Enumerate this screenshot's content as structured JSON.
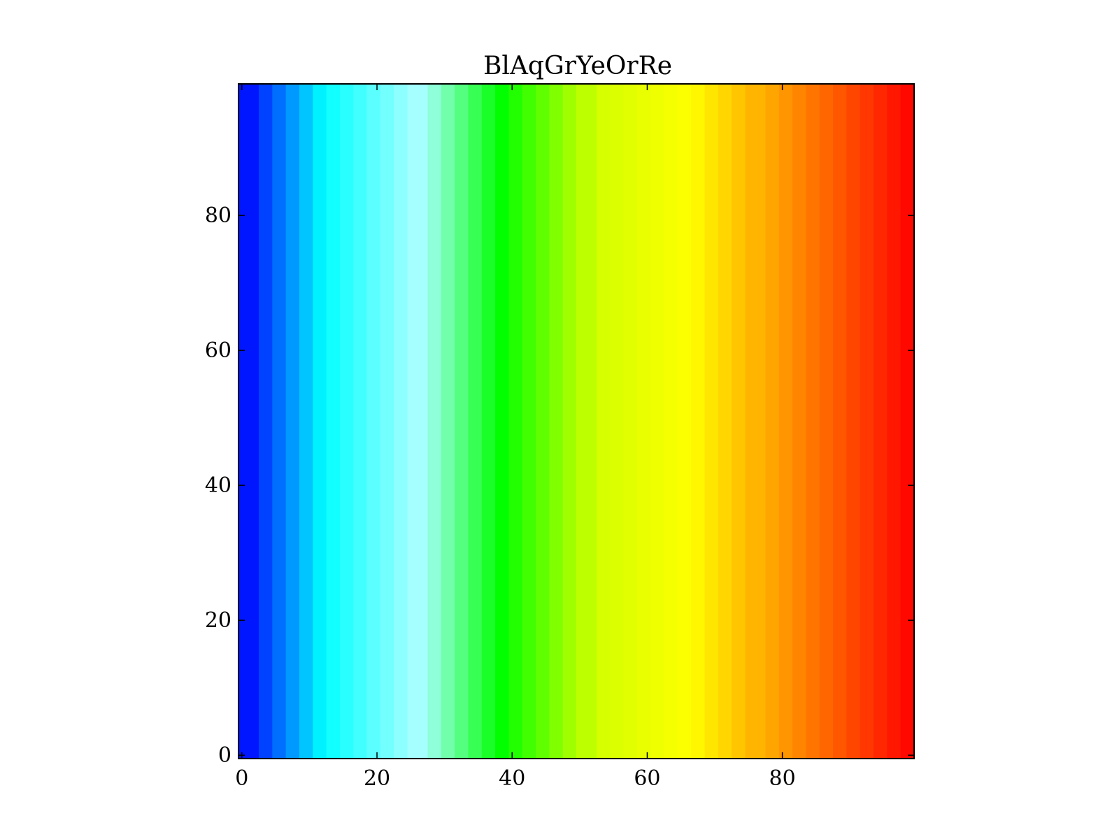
{
  "chart_data": {
    "type": "heatmap",
    "title": "BlAqGrYeOrRe",
    "xlabel": "",
    "ylabel": "",
    "xlim": [
      -0.5,
      99.5
    ],
    "ylim": [
      -0.5,
      99.5
    ],
    "x_ticks": [
      0,
      20,
      40,
      60,
      80
    ],
    "y_ticks": [
      0,
      20,
      40,
      60,
      80
    ],
    "x_tick_labels": [
      "0",
      "20",
      "40",
      "60",
      "80"
    ],
    "y_tick_labels": [
      "0",
      "20",
      "40",
      "60",
      "80"
    ],
    "grid": false,
    "colormap": {
      "name": "BlAqGrYeOrRe",
      "levels": 48,
      "stops": [
        {
          "value": 0,
          "color": "#0000ff"
        },
        {
          "value": 12,
          "color": "#00ffff"
        },
        {
          "value": 26,
          "color": "#a8ffff"
        },
        {
          "value": 38,
          "color": "#00ff00"
        },
        {
          "value": 52,
          "color": "#d4ff00"
        },
        {
          "value": 66,
          "color": "#ffff00"
        },
        {
          "value": 80,
          "color": "#ff9000"
        },
        {
          "value": 99,
          "color": "#ff0000"
        }
      ]
    },
    "cell_value_rule": "column index x (0-99); constant along y"
  }
}
